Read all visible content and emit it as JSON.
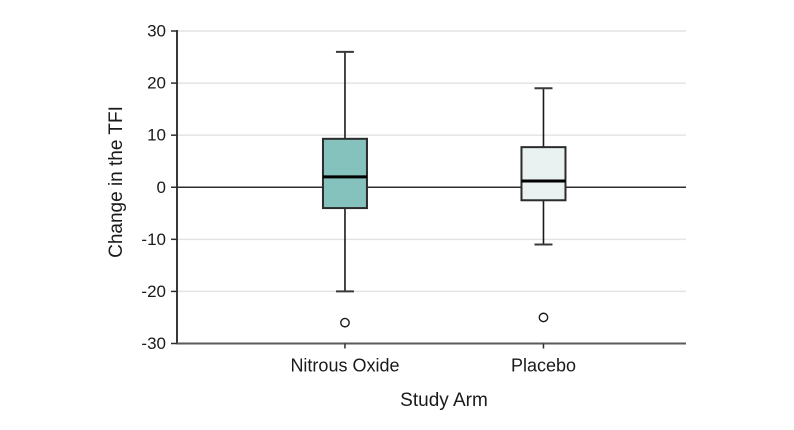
{
  "chart_data": {
    "type": "boxplot",
    "title": "",
    "xlabel": "Study Arm",
    "ylabel": "Change in the TFI",
    "categories": [
      "Nitrous Oxide",
      "Placebo"
    ],
    "ylim": [
      -30,
      30
    ],
    "ytick_values": [
      30,
      20,
      10,
      0,
      -10,
      -20,
      -30
    ],
    "ytick_labels": [
      "30",
      "20",
      "10",
      "0",
      "-10",
      "-20",
      "-30"
    ],
    "grid": "horizontal-major-light",
    "zero_line": true,
    "legend": "none",
    "series": [
      {
        "name": "Nitrous Oxide",
        "whisker_low": -20,
        "q1": -4,
        "median": 2,
        "q3": 9.3,
        "whisker_high": 26,
        "outliers": [
          -26
        ],
        "fill": "#85c1bd"
      },
      {
        "name": "Placebo",
        "whisker_low": -11,
        "q1": -2.5,
        "median": 1.2,
        "q3": 7.7,
        "whisker_high": 19,
        "outliers": [
          -25
        ],
        "fill": "#e9f1f1"
      }
    ],
    "colors": {
      "background": "#ffffff",
      "box_border": "#2b2b2b",
      "median": "#000000",
      "whisker": "#1a1a1a",
      "whisker_cap": "#3a3a3a",
      "grid": "#e4e4e4",
      "zero_line": "#2e2e2e",
      "axis": "#5a5a5a",
      "tick": "#2e2e2e",
      "text": "#1a1a1a",
      "outlier_stroke": "#1a1a1a",
      "outlier_fill": "#ffffff"
    }
  }
}
